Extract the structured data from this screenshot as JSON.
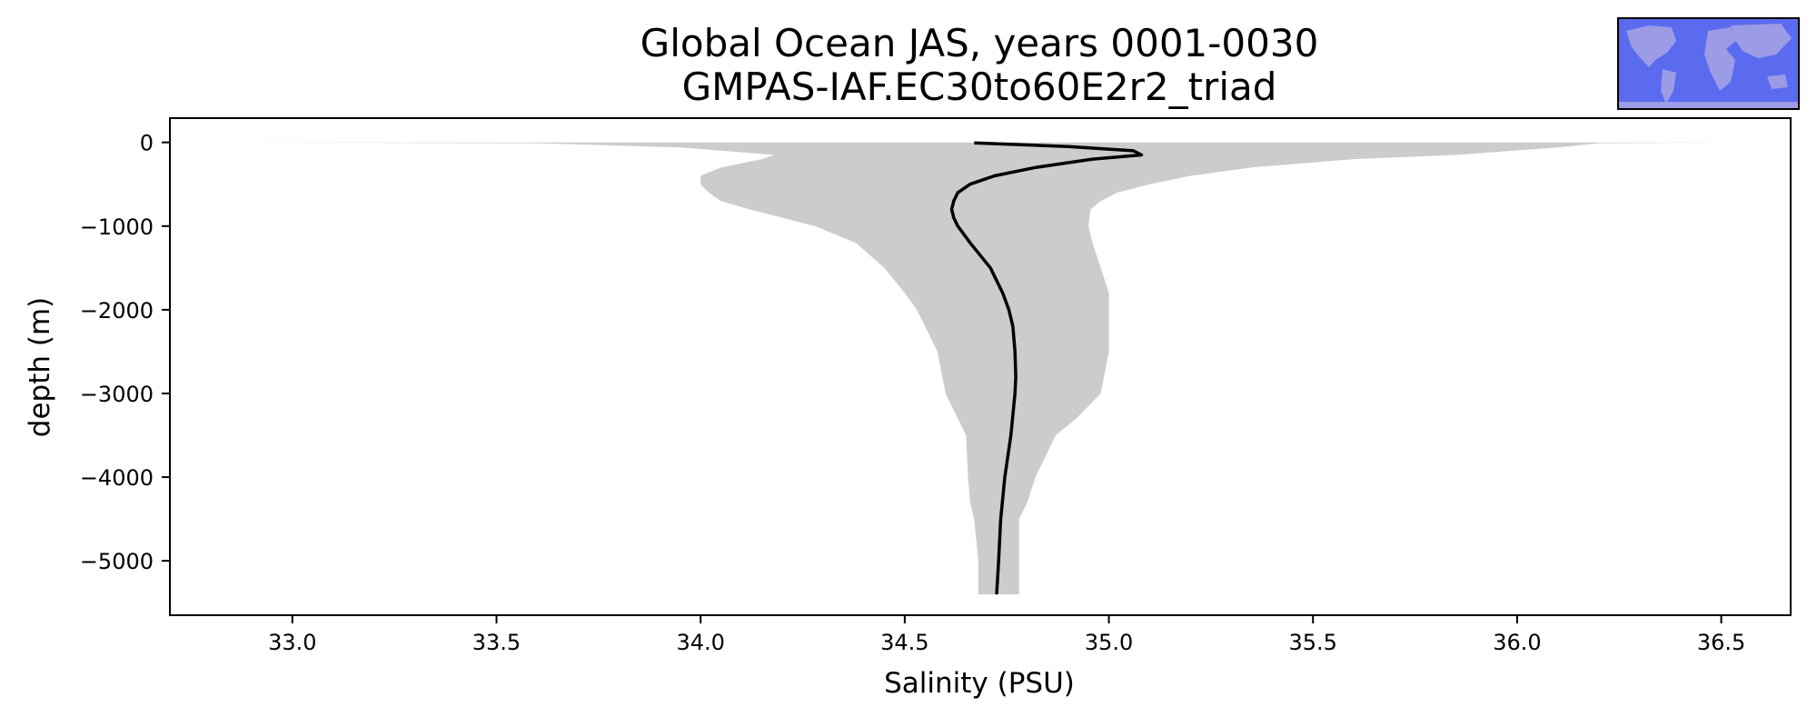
{
  "chart_data": {
    "type": "line",
    "title": "Global Ocean JAS, years 0001-0030",
    "subtitle": "GMPAS-IAF.EC30to60E2r2_triad",
    "xlabel": "Salinity (PSU)",
    "ylabel": "depth (m)",
    "xlim": [
      32.7,
      36.67
    ],
    "ylim": [
      -5650,
      290
    ],
    "x_ticks": [
      33.0,
      33.5,
      34.0,
      34.5,
      35.0,
      35.5,
      36.0,
      36.5
    ],
    "x_tick_labels": [
      "33.0",
      "33.5",
      "34.0",
      "34.5",
      "35.0",
      "35.5",
      "36.0",
      "36.5"
    ],
    "y_ticks": [
      0,
      -1000,
      -2000,
      -3000,
      -4000,
      -5000
    ],
    "y_tick_labels": [
      "0",
      "−1000",
      "−2000",
      "−3000",
      "−4000",
      "−5000"
    ],
    "grid": false,
    "colors": {
      "mean_line": "#000000",
      "range_fill": "#cccccc",
      "inset_ocean": "#5b6bf0",
      "inset_land": "#9b9be6"
    },
    "series": [
      {
        "role": "mean",
        "depth": [
          -5,
          -50,
          -100,
          -150,
          -200,
          -300,
          -400,
          -500,
          -600,
          -700,
          -800,
          -900,
          -1000,
          -1200,
          -1500,
          -1800,
          -2000,
          -2200,
          -2500,
          -2800,
          -3000,
          -3500,
          -4000,
          -4500,
          -5000,
          -5400
        ],
        "salinity": [
          34.67,
          34.9,
          35.06,
          35.08,
          34.96,
          34.82,
          34.72,
          34.66,
          34.63,
          34.62,
          34.615,
          34.62,
          34.63,
          34.66,
          34.71,
          34.74,
          34.755,
          34.765,
          34.77,
          34.772,
          34.77,
          34.76,
          34.745,
          34.735,
          34.73,
          34.725
        ]
      }
    ],
    "range_band": {
      "role": "min-max envelope",
      "depth": [
        0,
        -10,
        -60,
        -150,
        -200,
        -300,
        -400,
        -500,
        -600,
        -700,
        -800,
        -1000,
        -1200,
        -1500,
        -1800,
        -2000,
        -2500,
        -3000,
        -3300,
        -3500,
        -4000,
        -4300,
        -4500,
        -5000,
        -5400
      ],
      "min": [
        32.85,
        33.6,
        33.95,
        34.18,
        34.15,
        34.05,
        34.0,
        34.0,
        34.02,
        34.05,
        34.12,
        34.28,
        34.38,
        34.45,
        34.5,
        34.53,
        34.58,
        34.6,
        34.63,
        34.65,
        34.655,
        34.66,
        34.67,
        34.68,
        34.68
      ],
      "max": [
        36.5,
        36.2,
        36.1,
        35.85,
        35.6,
        35.35,
        35.2,
        35.1,
        35.02,
        34.98,
        34.955,
        34.95,
        34.96,
        34.98,
        35.0,
        35.0,
        35.0,
        34.98,
        34.92,
        34.87,
        34.82,
        34.8,
        34.78,
        34.78,
        34.78
      ]
    }
  }
}
